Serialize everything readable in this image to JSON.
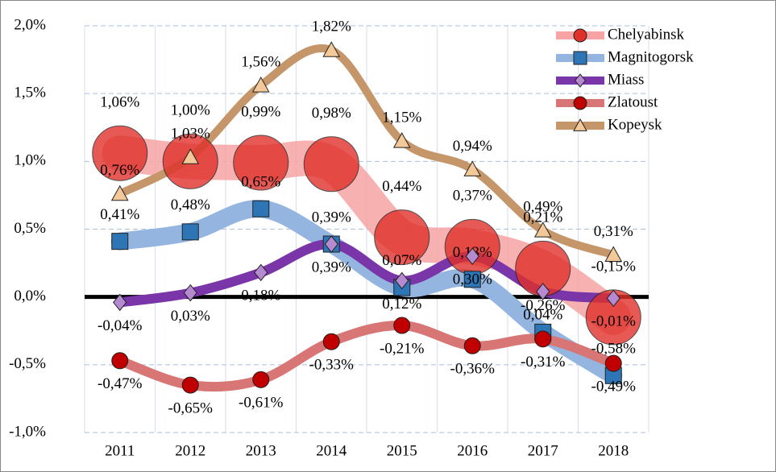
{
  "chart_data": {
    "type": "line",
    "categories": [
      "2011",
      "2012",
      "2013",
      "2014",
      "2015",
      "2016",
      "2017",
      "2018"
    ],
    "ylim": [
      -1,
      2
    ],
    "yticks": [
      {
        "value": -1,
        "label": "-1,0%"
      },
      {
        "value": -0.5,
        "label": "-0,5%"
      },
      {
        "value": 0,
        "label": "0,0%"
      },
      {
        "value": 0.5,
        "label": "0,5%"
      },
      {
        "value": 1,
        "label": "1,0%"
      },
      {
        "value": 1.5,
        "label": "1,5%"
      },
      {
        "value": 2,
        "label": "2,0%"
      }
    ],
    "grid": true,
    "legend": "top-right",
    "series": [
      {
        "name": "Chelyabinsk",
        "color": "#f7a3a3",
        "marker": "circle",
        "marker_color": "#e0302a",
        "values": [
          1.06,
          1.0,
          0.99,
          0.98,
          0.44,
          0.37,
          0.21,
          -0.15
        ],
        "value_labels": [
          "1,06%",
          "1,00%",
          "0,99%",
          "0,98%",
          "0,44%",
          "0,37%",
          "0,21%",
          "-0,15%"
        ]
      },
      {
        "name": "Magnitogorsk",
        "color": "#93b5e0",
        "marker": "square",
        "marker_color": "#2e75b6",
        "values": [
          0.41,
          0.48,
          0.65,
          0.39,
          0.07,
          0.13,
          -0.26,
          -0.58
        ],
        "value_labels": [
          "0,41%",
          "0,48%",
          "0,65%",
          "0,39%",
          "0,07%",
          "0,13%",
          "-0,26%",
          "-0,58%"
        ]
      },
      {
        "name": "Miass",
        "color": "#7a35a8",
        "marker": "diamond",
        "marker_color": "#b58ad1",
        "values": [
          -0.04,
          0.03,
          0.18,
          0.39,
          0.12,
          0.3,
          0.04,
          -0.01
        ],
        "value_labels": [
          "-0,04%",
          "0,03%",
          "0,18%",
          "0,39%",
          "0,12%",
          "0,30%",
          "0,04%",
          "-0,01%"
        ]
      },
      {
        "name": "Zlatoust",
        "color": "#d87575",
        "marker": "circle",
        "marker_color": "#c00000",
        "values": [
          -0.47,
          -0.65,
          -0.61,
          -0.33,
          -0.21,
          -0.36,
          -0.31,
          -0.49
        ],
        "value_labels": [
          "-0,47%",
          "-0,65%",
          "-0,61%",
          "-0,33%",
          "-0,21%",
          "-0,36%",
          "-0,31%",
          "-0,49%"
        ]
      },
      {
        "name": "Kopeysk",
        "color": "#c4966a",
        "marker": "triangle",
        "marker_color": "#f3c99a",
        "values": [
          0.76,
          1.03,
          1.56,
          1.82,
          1.15,
          0.94,
          0.49,
          0.31
        ],
        "value_labels": [
          "0,76%",
          "1,03%",
          "1,56%",
          "1,82%",
          "1,15%",
          "0,94%",
          "0,49%",
          "0,31%"
        ]
      }
    ]
  }
}
